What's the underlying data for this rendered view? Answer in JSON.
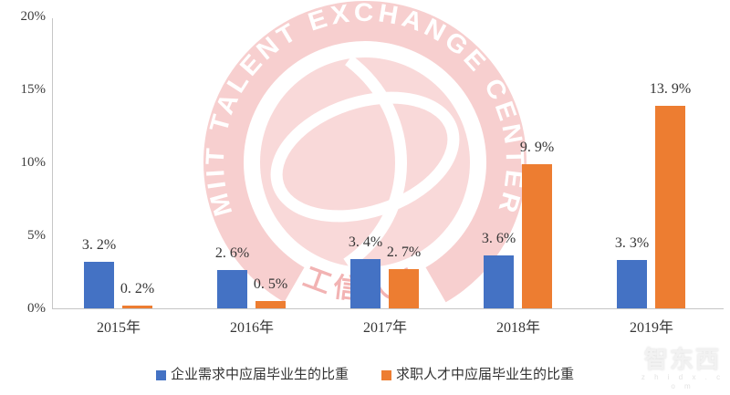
{
  "chart_data": {
    "type": "bar",
    "title": "",
    "xlabel": "",
    "ylabel": "",
    "categories": [
      "2015年",
      "2016年",
      "2017年",
      "2018年",
      "2019年"
    ],
    "series": [
      {
        "name": "企业需求中应届毕业生的比重",
        "color": "#4472C4",
        "values": [
          3.2,
          2.6,
          3.4,
          3.6,
          3.3
        ],
        "data_labels": [
          "3. 2%",
          "2. 6%",
          "3. 4%",
          "3. 6%",
          "3. 3%"
        ]
      },
      {
        "name": "求职人才中应届毕业生的比重",
        "color": "#ED7D31",
        "values": [
          0.2,
          0.5,
          2.7,
          9.9,
          13.9
        ],
        "data_labels": [
          "0. 2%",
          "0. 5%",
          "2. 7%",
          "9. 9%",
          "13. 9%"
        ]
      }
    ],
    "ylim": [
      0,
      20
    ],
    "y_ticks": [
      {
        "value": 0,
        "label": "0%"
      },
      {
        "value": 5,
        "label": "5%"
      },
      {
        "value": 10,
        "label": "10%"
      },
      {
        "value": 15,
        "label": "15%"
      },
      {
        "value": 20,
        "label": "20%"
      }
    ],
    "grid": false,
    "legend_position": "bottom"
  },
  "watermark": {
    "ring_text": "MIIT TALENT EXCHANGE CENTER",
    "bottom_text": "工信人才",
    "ring_color": "#f7cfcf",
    "inner_color": "#f9d9d9",
    "accent_color": "#f2b3b3"
  },
  "logo": {
    "text": "智东西",
    "subtext": "z h i d x . c o m"
  },
  "colors": {
    "axis_line": "#c6c6c6",
    "label_text": "#353535"
  }
}
